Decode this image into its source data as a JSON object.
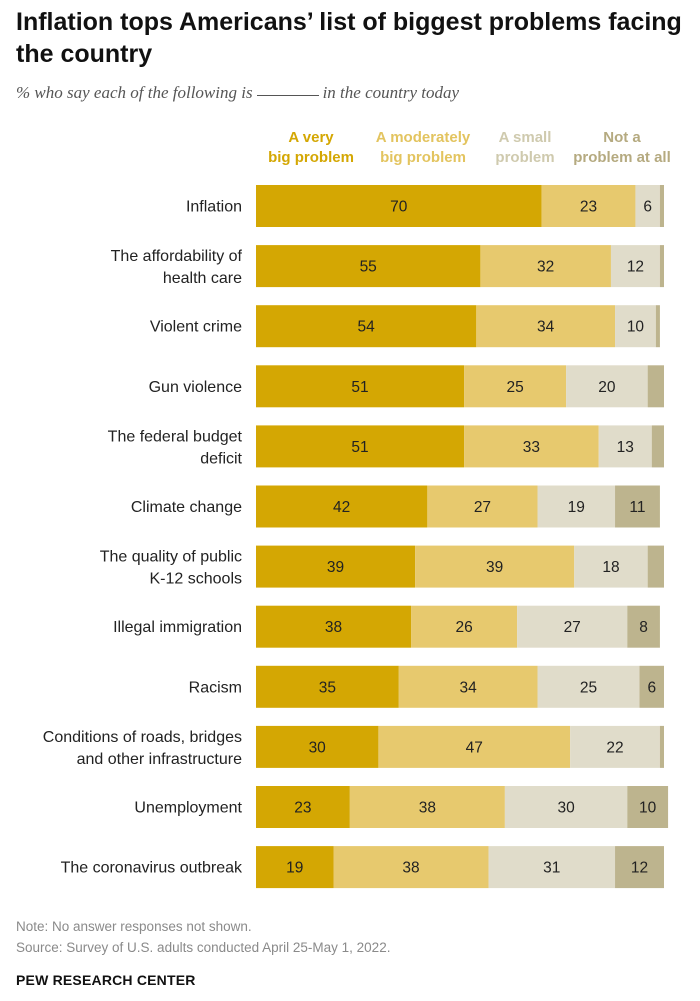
{
  "header": {
    "title": "Inflation tops Americans’ list of biggest problems facing the country",
    "subtitle_before": "% who say each of the following is",
    "subtitle_after": "in the country today"
  },
  "colors": {
    "very_big": "#d4a703",
    "moderately_big": "#e7c96e",
    "small": "#e0dcca",
    "not_a_problem": "#bdb48e",
    "label_dark": "#222222",
    "legend_text": [
      "#d4a703",
      "#e3c45f",
      "#cfcaae",
      "#b5aa80"
    ]
  },
  "chart_data": {
    "type": "bar",
    "orientation": "horizontal",
    "stacked": true,
    "legend_position": "top",
    "series": [
      {
        "name": "A very big problem",
        "legend_lines": [
          "A very",
          "big problem"
        ],
        "values": [
          70,
          55,
          54,
          51,
          51,
          42,
          39,
          38,
          35,
          30,
          23,
          19
        ]
      },
      {
        "name": "A moderately big problem",
        "legend_lines": [
          "A moderately",
          "big problem"
        ],
        "values": [
          23,
          32,
          34,
          25,
          33,
          27,
          39,
          26,
          34,
          47,
          38,
          38
        ]
      },
      {
        "name": "A small problem",
        "legend_lines": [
          "A small",
          "problem"
        ],
        "values": [
          6,
          12,
          10,
          20,
          13,
          19,
          18,
          27,
          25,
          22,
          30,
          31
        ]
      },
      {
        "name": "Not a problem at all",
        "legend_lines": [
          "Not a",
          "problem at all"
        ],
        "values": [
          1,
          1,
          1,
          4,
          3,
          11,
          4,
          8,
          6,
          1,
          10,
          12
        ]
      }
    ],
    "value_labels": [
      [
        "70",
        "23",
        "6",
        ""
      ],
      [
        "55",
        "32",
        "12",
        ""
      ],
      [
        "54",
        "34",
        "10",
        ""
      ],
      [
        "51",
        "25",
        "20",
        ""
      ],
      [
        "51",
        "33",
        "13",
        ""
      ],
      [
        "42",
        "27",
        "19",
        "11"
      ],
      [
        "39",
        "39",
        "18",
        ""
      ],
      [
        "38",
        "26",
        "27",
        "8"
      ],
      [
        "35",
        "34",
        "25",
        "6"
      ],
      [
        "30",
        "47",
        "22",
        ""
      ],
      [
        "23",
        "38",
        "30",
        "10"
      ],
      [
        "19",
        "38",
        "31",
        "12"
      ]
    ],
    "categories": [
      [
        "Inflation"
      ],
      [
        "The affordability of",
        "health care"
      ],
      [
        "Violent crime"
      ],
      [
        "Gun violence"
      ],
      [
        "The federal budget",
        "deficit"
      ],
      [
        "Climate change"
      ],
      [
        "The quality of public",
        "K-12 schools"
      ],
      [
        "Illegal immigration"
      ],
      [
        "Racism"
      ],
      [
        "Conditions of roads, bridges",
        "and other infrastructure"
      ],
      [
        "Unemployment"
      ],
      [
        "The coronavirus outbreak"
      ]
    ],
    "xlim": [
      0,
      100
    ]
  },
  "footer": {
    "note": "Note: No answer responses not shown.",
    "source": "Source: Survey of U.S. adults conducted April 25-May 1, 2022.",
    "brand": "PEW RESEARCH CENTER"
  }
}
